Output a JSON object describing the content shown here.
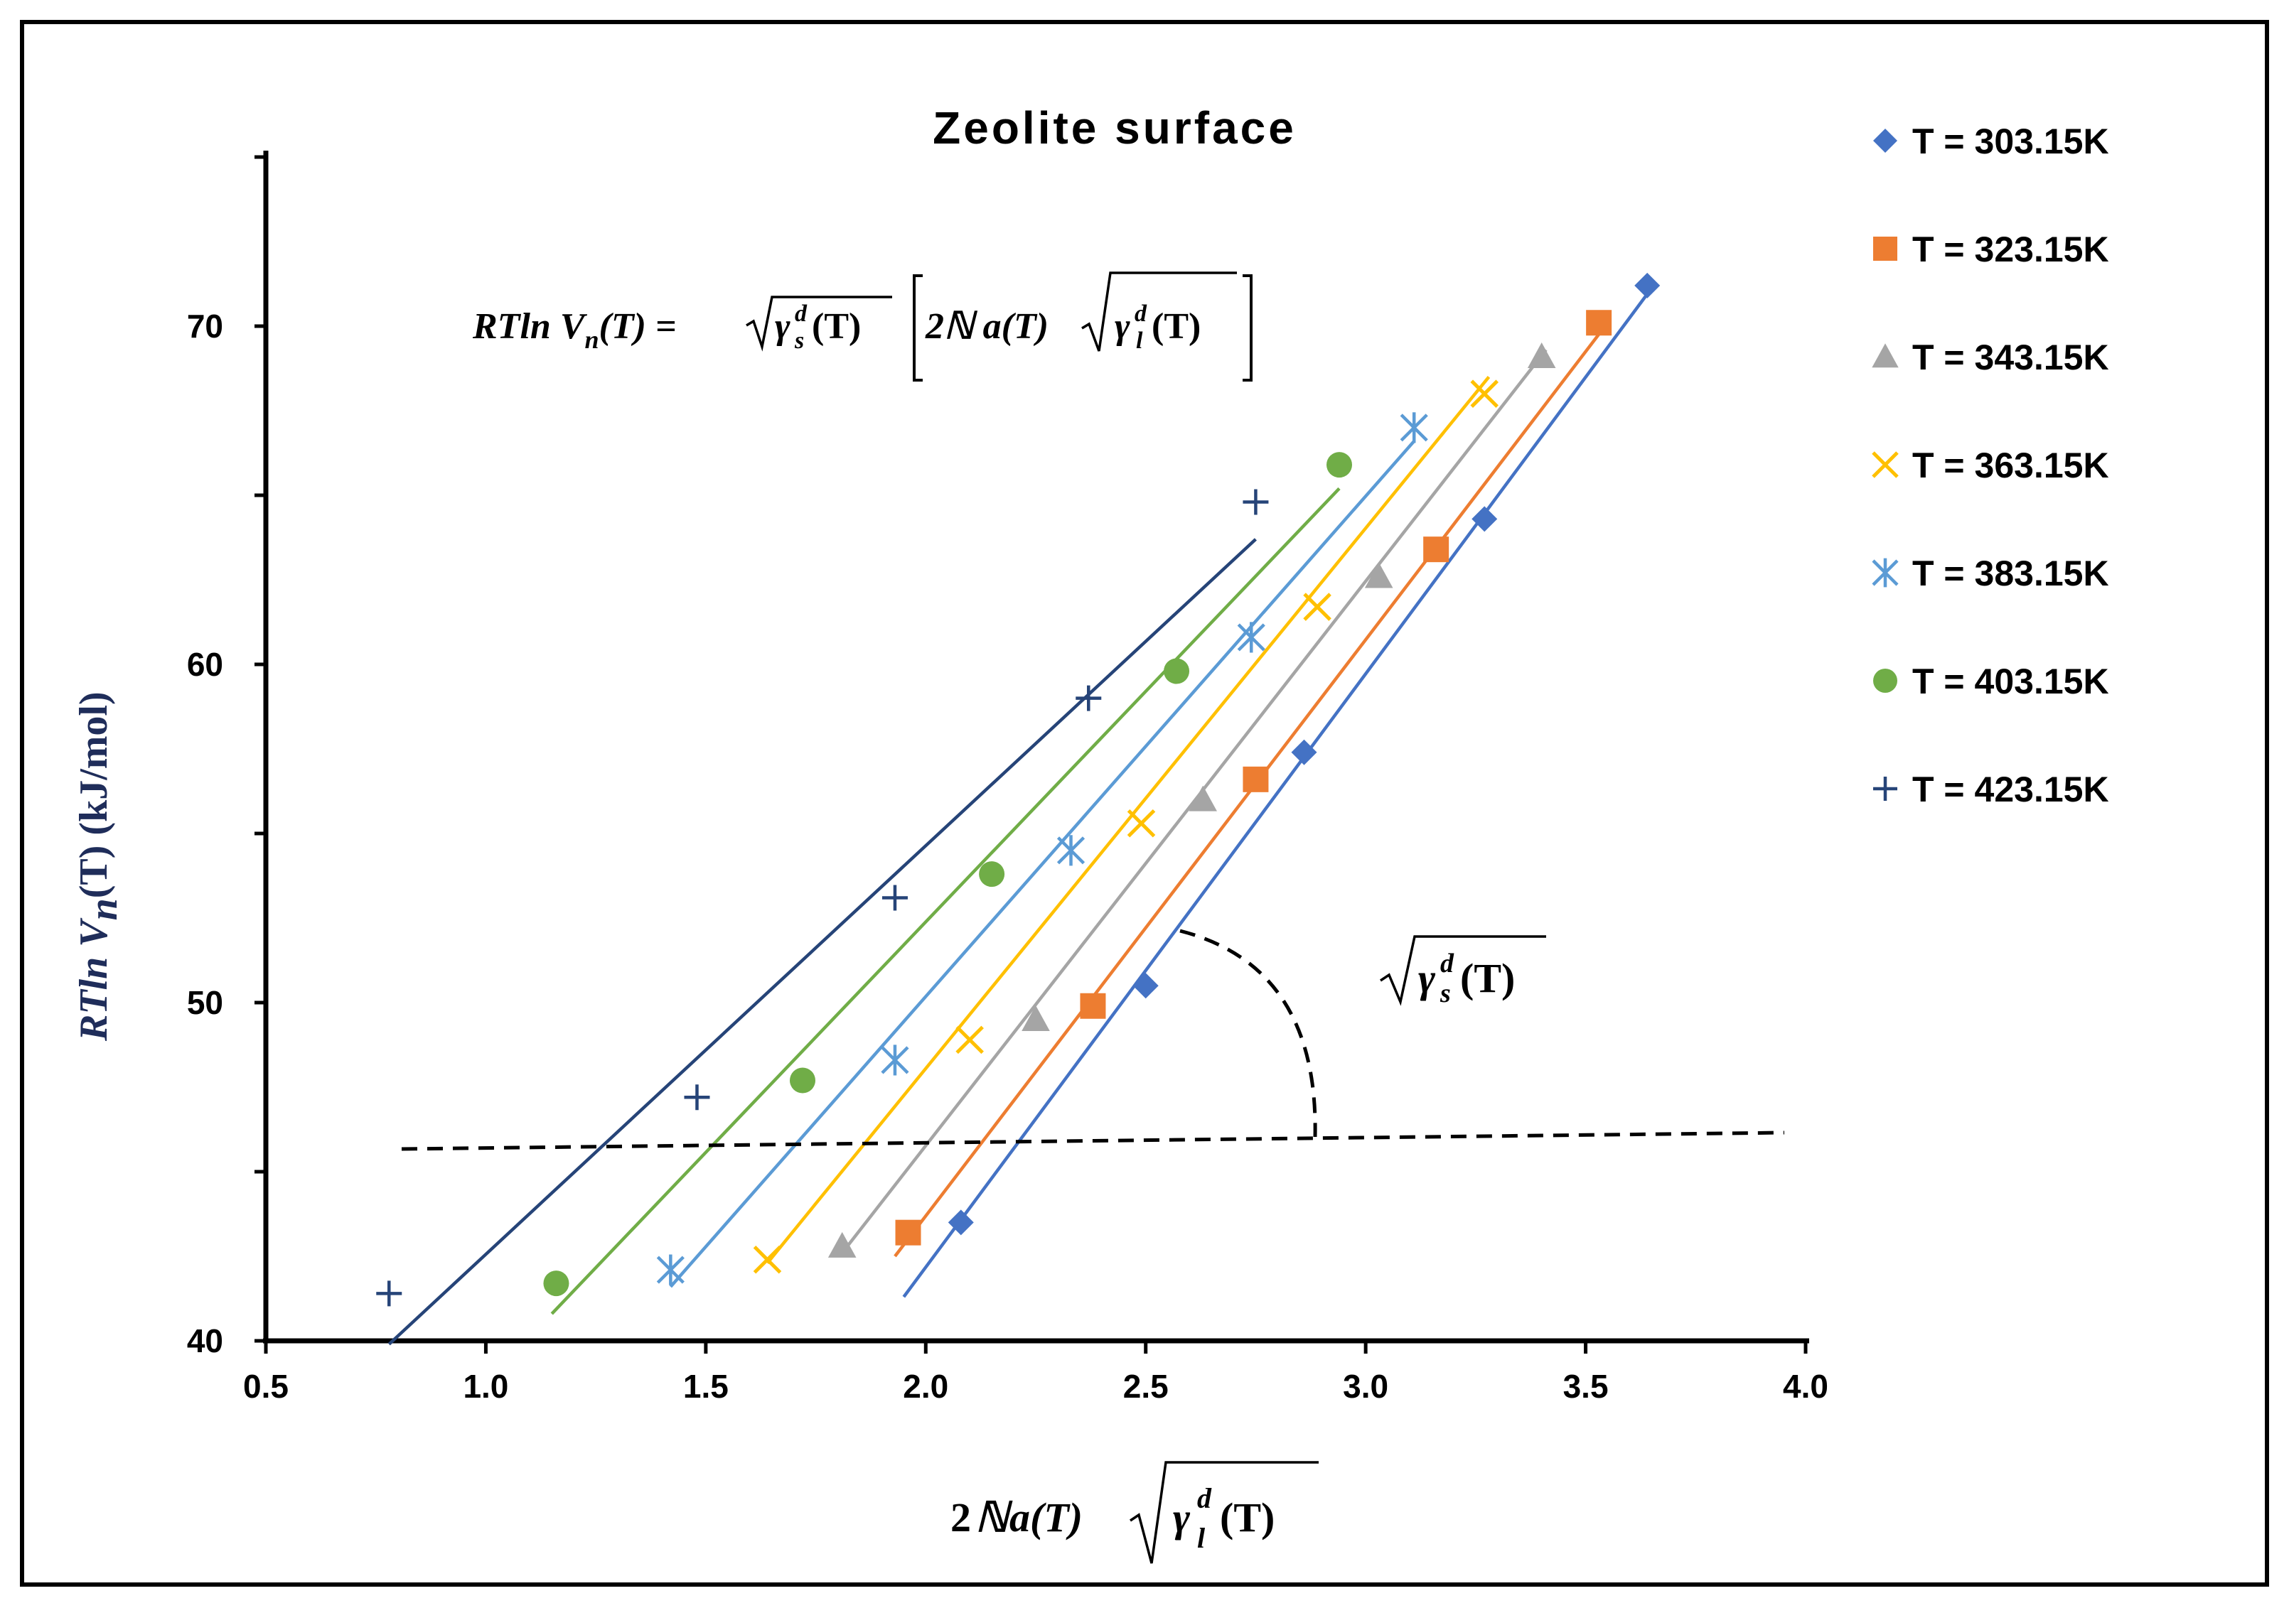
{
  "chart_data": {
    "type": "scatter",
    "title": "Zeolite surface",
    "xlabel": {
      "main": "2",
      "script": "ℕ",
      "a": "a(T)",
      "sqrt": "γ",
      "sup": "d",
      "sub": "l",
      "tail": "(T)"
    },
    "ylabel": {
      "prefix": "RTln V",
      "sub": "n",
      "arg": "(T)",
      "unit": "(kJ/mol)"
    },
    "equation": {
      "lhs": "RTln V",
      "lhs_sub": "n",
      "lhs_arg": "(T) =",
      "gamma_s": "γ",
      "sup": "d",
      "sub_s": "s",
      "arg": "(T)",
      "bracket_text": "2ℕ a(T)",
      "gamma_l_sub": "l"
    },
    "slope_label": {
      "gamma": "γ",
      "sup": "d",
      "sub": "s",
      "arg": "(T)"
    },
    "xlim": [
      0.5,
      4.0
    ],
    "ylim": [
      40,
      75
    ],
    "x_ticks": [
      "0.5",
      "1.0",
      "1.5",
      "2.0",
      "2.5",
      "3.0",
      "3.5",
      "4.0"
    ],
    "y_ticks": [
      "40",
      "50",
      "60",
      "70"
    ],
    "legend_position": "right",
    "series": [
      {
        "name": "T = 303.15K",
        "marker": "diamond",
        "color": "#4472c4",
        "x": [
          2.08,
          2.5,
          2.86,
          3.27,
          3.64
        ],
        "y": [
          43.5,
          50.5,
          57.4,
          64.3,
          71.2
        ],
        "fit": [
          [
            1.95,
            41.3
          ],
          [
            3.66,
            71.3
          ]
        ]
      },
      {
        "name": "T = 323.15K",
        "marker": "square",
        "color": "#ed7d31",
        "x": [
          1.96,
          2.38,
          2.75,
          3.16,
          3.53
        ],
        "y": [
          43.2,
          49.9,
          56.6,
          63.4,
          70.1
        ],
        "fit": [
          [
            1.93,
            42.5
          ],
          [
            3.55,
            70.1
          ]
        ]
      },
      {
        "name": "T = 343.15K",
        "marker": "triangle",
        "color": "#a5a5a5",
        "x": [
          1.81,
          2.25,
          2.63,
          3.03,
          3.4
        ],
        "y": [
          42.8,
          49.5,
          56.0,
          62.6,
          69.1
        ],
        "fit": [
          [
            1.81,
            42.6
          ],
          [
            3.41,
            69.3
          ]
        ]
      },
      {
        "name": "T = 363.15K",
        "marker": "x",
        "color": "#ffc000",
        "x": [
          1.64,
          2.1,
          2.49,
          2.89,
          3.27
        ],
        "y": [
          42.4,
          48.9,
          55.3,
          61.7,
          68.0
        ],
        "fit": [
          [
            1.64,
            42.3
          ],
          [
            3.28,
            68.5
          ]
        ]
      },
      {
        "name": "T = 383.15K",
        "marker": "star",
        "color": "#5b9bd5",
        "x": [
          1.42,
          1.93,
          2.33,
          2.74,
          3.11
        ],
        "y": [
          42.1,
          48.3,
          54.5,
          60.8,
          67.0
        ],
        "fit": [
          [
            1.42,
            41.6
          ],
          [
            3.11,
            66.6
          ]
        ]
      },
      {
        "name": "T = 403.15K",
        "marker": "circle",
        "color": "#70ad47",
        "x": [
          1.16,
          1.72,
          2.15,
          2.57,
          2.94
        ],
        "y": [
          41.7,
          47.7,
          53.8,
          59.8,
          65.9
        ],
        "fit": [
          [
            1.15,
            40.8
          ],
          [
            2.94,
            65.2
          ]
        ]
      },
      {
        "name": "T = 423.15K",
        "marker": "plus",
        "color": "#264478",
        "x": [
          0.78,
          1.48,
          1.93,
          2.37,
          2.75
        ],
        "y": [
          41.4,
          47.2,
          53.1,
          59.0,
          64.8
        ],
        "fit": [
          [
            0.78,
            39.9
          ],
          [
            2.75,
            63.7
          ]
        ]
      }
    ]
  }
}
